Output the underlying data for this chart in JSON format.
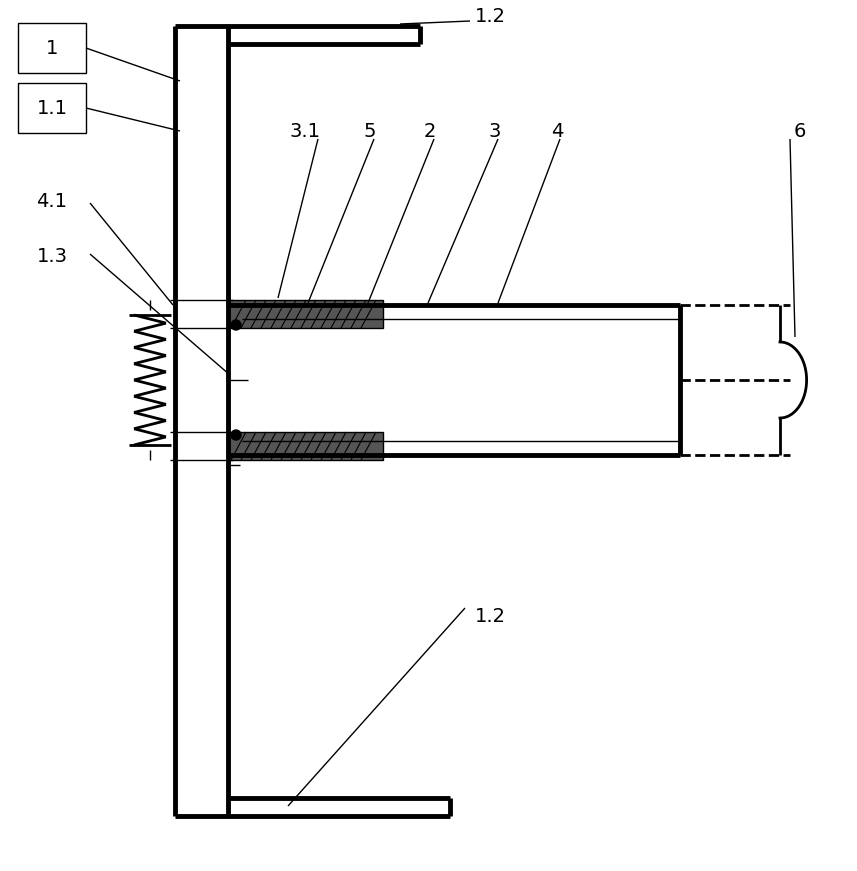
{
  "bg_color": "#ffffff",
  "line_color": "#000000",
  "fig_width": 8.57,
  "fig_height": 8.71,
  "dpi": 100
}
